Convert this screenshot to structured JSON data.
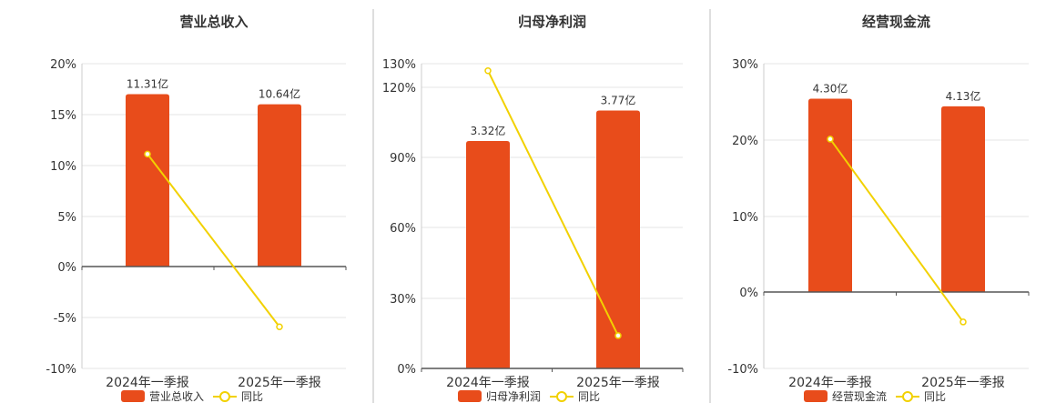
{
  "bar_color": "#e84c1b",
  "line_color": "#f2d100",
  "chart_data": [
    {
      "type": "bar",
      "title": "营业总收入",
      "categories": [
        "2024年一季报",
        "2025年一季报"
      ],
      "bar_labels": [
        "11.31亿",
        "10.64亿"
      ],
      "y_ticks": [
        "20%",
        "15%",
        "10%",
        "5%",
        "0%",
        "-5%",
        "-10%"
      ],
      "ylim": [
        -10,
        20
      ],
      "series": [
        {
          "name": "营业总收入",
          "kind": "bar",
          "values": [
            17.0,
            16.0
          ],
          "amounts_yi": [
            11.31,
            10.64
          ]
        },
        {
          "name": "同比",
          "kind": "line",
          "values": [
            11.1,
            -5.9
          ]
        }
      ]
    },
    {
      "type": "bar",
      "title": "归母净利润",
      "categories": [
        "2024年一季报",
        "2025年一季报"
      ],
      "bar_labels": [
        "3.32亿",
        "3.77亿"
      ],
      "y_ticks": [
        "130%",
        "120%",
        "90%",
        "60%",
        "30%",
        "0%"
      ],
      "ylim": [
        0,
        130
      ],
      "series": [
        {
          "name": "归母净利润",
          "kind": "bar",
          "values": [
            97,
            110
          ],
          "amounts_yi": [
            3.32,
            3.77
          ]
        },
        {
          "name": "同比",
          "kind": "line",
          "values": [
            127,
            14
          ]
        }
      ]
    },
    {
      "type": "bar",
      "title": "经营现金流",
      "categories": [
        "2024年一季报",
        "2025年一季报"
      ],
      "bar_labels": [
        "4.30亿",
        "4.13亿"
      ],
      "y_ticks": [
        "30%",
        "20%",
        "10%",
        "0%",
        "-10%"
      ],
      "ylim": [
        -10,
        30
      ],
      "series": [
        {
          "name": "经营现金流",
          "kind": "bar",
          "values": [
            25.4,
            24.4
          ],
          "amounts_yi": [
            4.3,
            4.13
          ]
        },
        {
          "name": "同比",
          "kind": "line",
          "values": [
            20.1,
            -3.9
          ]
        }
      ]
    }
  ]
}
